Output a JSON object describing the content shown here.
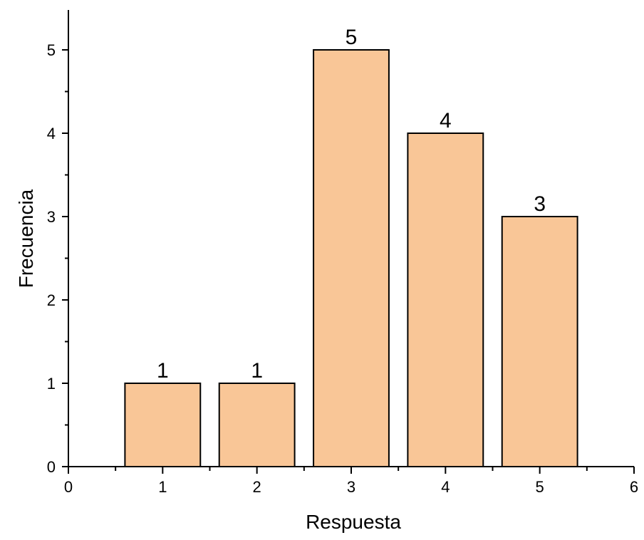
{
  "chart_data": {
    "type": "bar",
    "title": "",
    "xlabel": "Respuesta",
    "ylabel": "Frecuencia",
    "x": [
      1,
      2,
      3,
      4,
      5
    ],
    "values": [
      1,
      1,
      5,
      4,
      3
    ],
    "data_labels": [
      "1",
      "1",
      "5",
      "4",
      "3"
    ],
    "xlim": [
      0,
      6
    ],
    "ylim": [
      0,
      5.5
    ],
    "xticks": [
      0,
      1,
      2,
      3,
      4,
      5,
      6
    ],
    "yticks": [
      0,
      1,
      2,
      3,
      4,
      5
    ],
    "bar_width": 0.8,
    "grid": false,
    "legend": "none",
    "colors": {
      "bar_fill": "#F9C697",
      "bar_edge": "#000000",
      "axis": "#000000",
      "text": "#000000"
    }
  }
}
